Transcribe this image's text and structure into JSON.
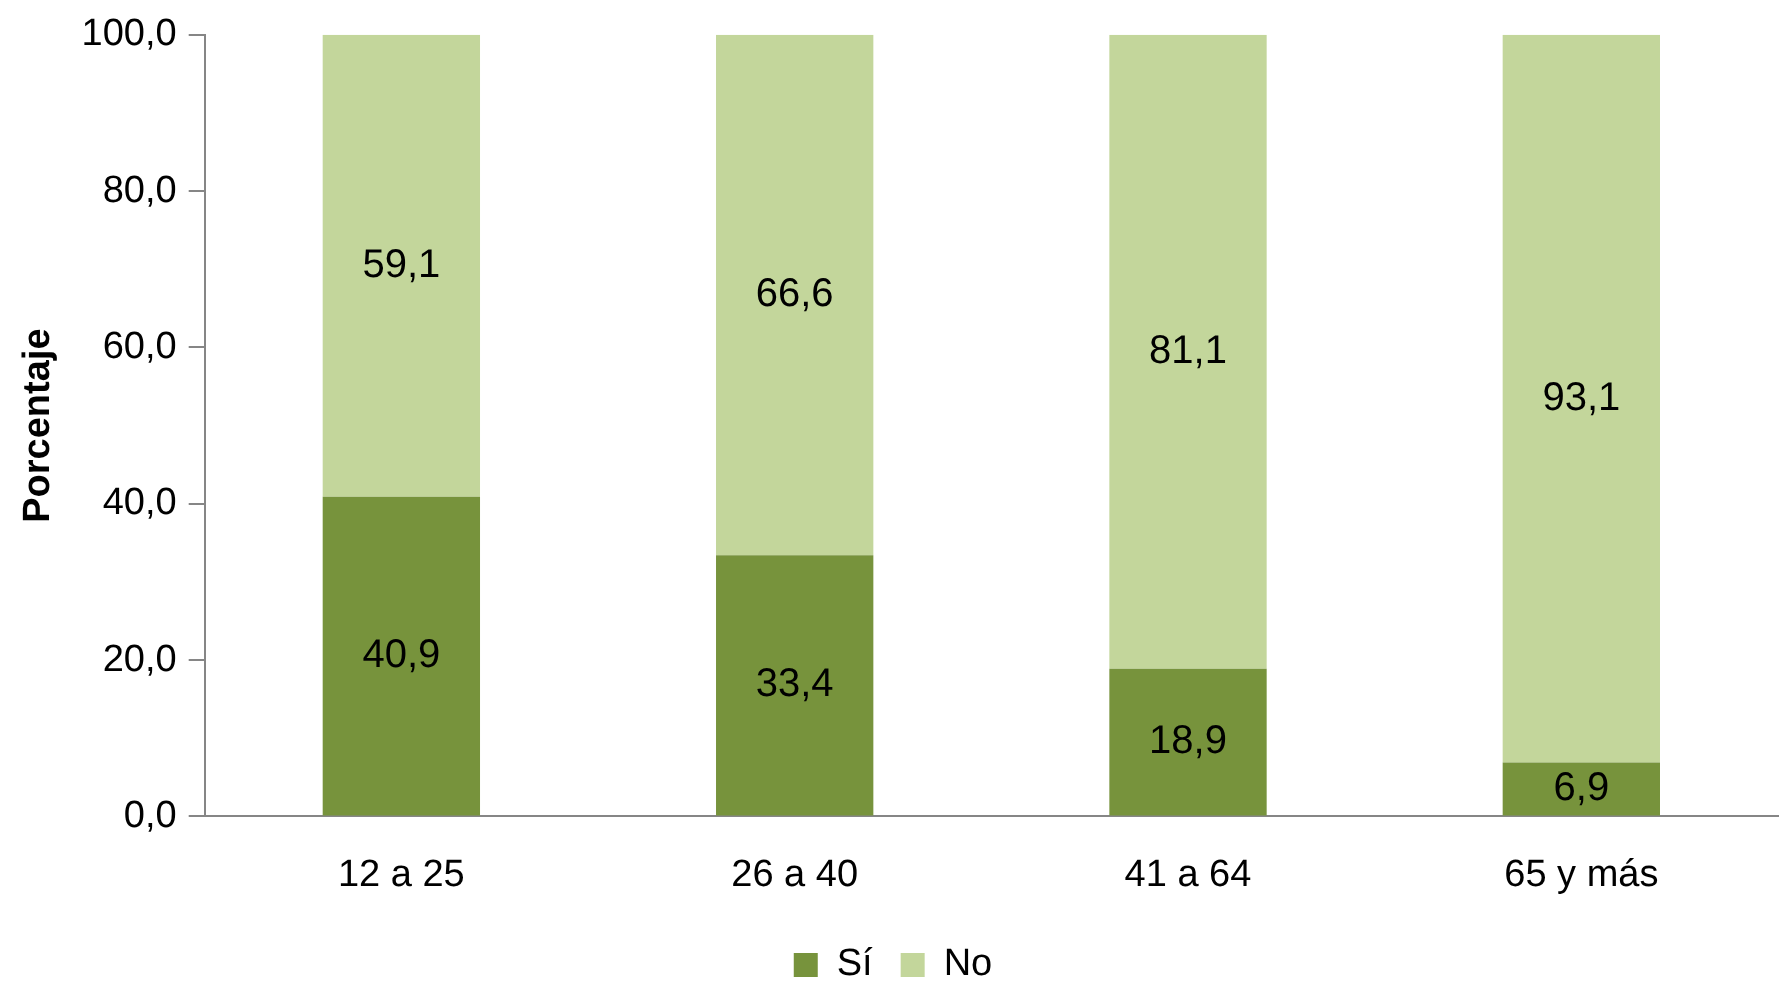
{
  "chart_data": {
    "type": "bar",
    "stacked": true,
    "ylabel": "Porcentaje",
    "categories": [
      "12 a 25",
      "26 a 40",
      "41 a 64",
      "65 y más"
    ],
    "series": [
      {
        "name": "Sí",
        "color": "#77933c",
        "values": [
          40.9,
          33.4,
          18.9,
          6.9
        ],
        "value_labels": [
          "40,9",
          "33,4",
          "18,9",
          "6,9"
        ]
      },
      {
        "name": "No",
        "color": "#c3d69b",
        "values": [
          59.1,
          66.6,
          81.1,
          93.1
        ],
        "value_labels": [
          "59,1",
          "66,6",
          "81,1",
          "93,1"
        ]
      }
    ],
    "ylim": [
      0,
      100
    ],
    "yticks": [
      {
        "value": 0,
        "label": "0,0"
      },
      {
        "value": 20,
        "label": "20,0"
      },
      {
        "value": 40,
        "label": "40,0"
      },
      {
        "value": 60,
        "label": "60,0"
      },
      {
        "value": 80,
        "label": "80,0"
      },
      {
        "value": 100,
        "label": "100,0"
      }
    ],
    "grid": false,
    "legend": "bottom"
  }
}
